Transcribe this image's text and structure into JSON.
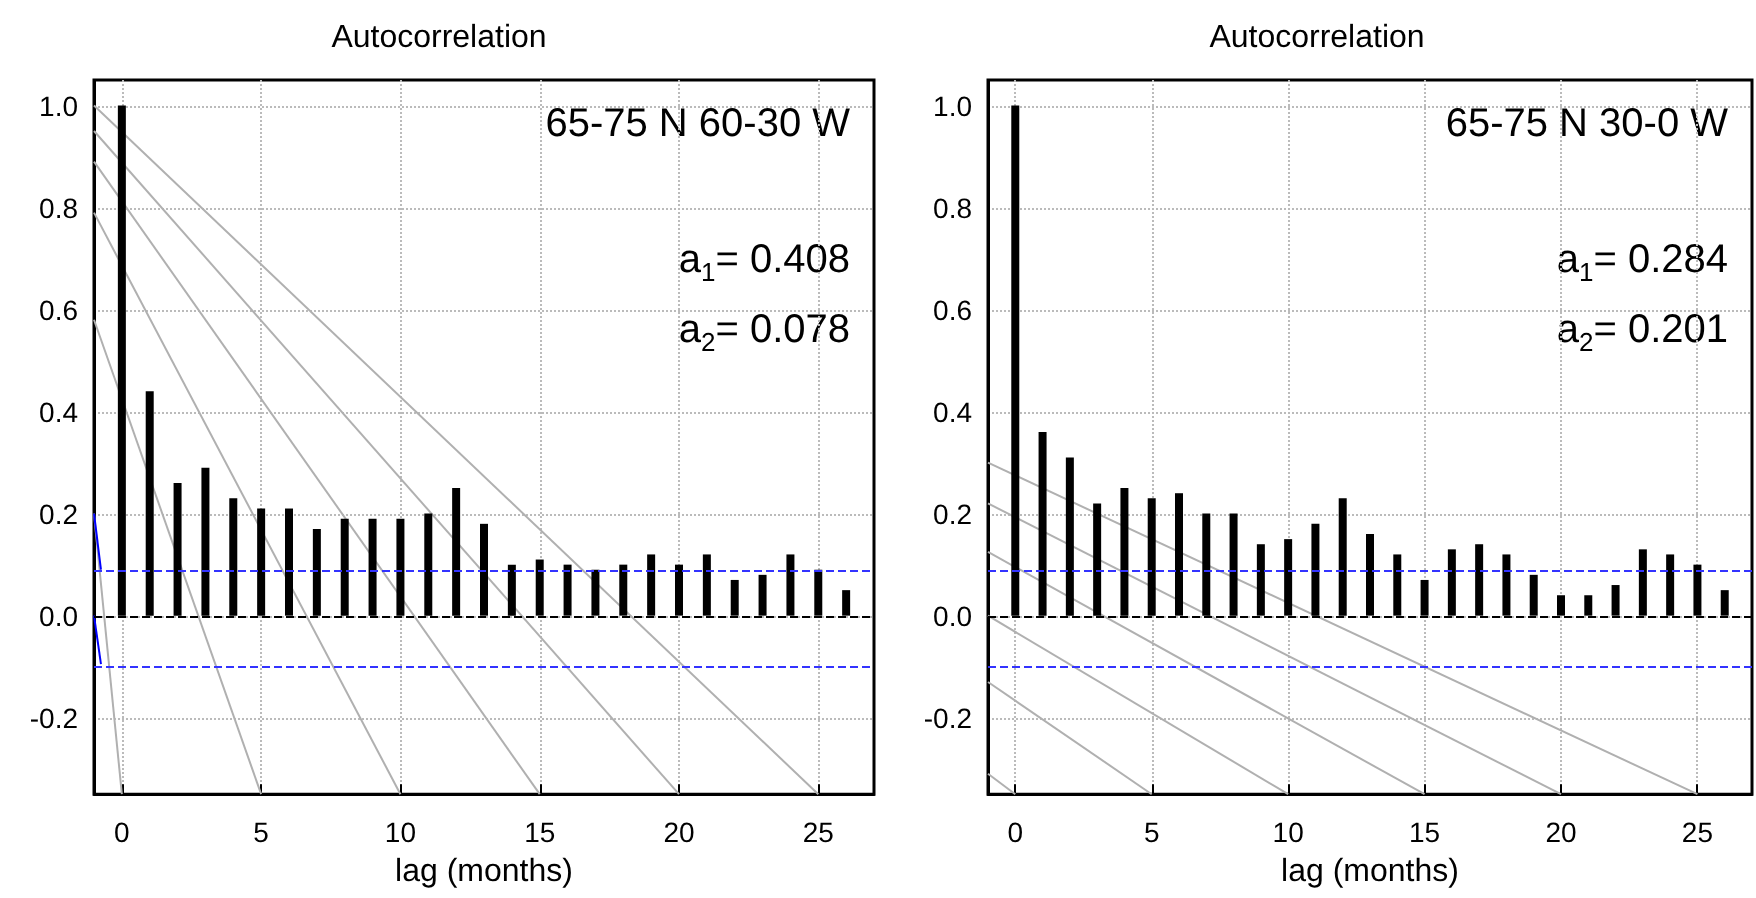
{
  "chart_data": [
    {
      "type": "bar",
      "title": "Autocorrelation",
      "xlabel": "lag (months)",
      "annotations": [
        "65-75 N 60-30 W",
        "a$_{1}$= 0.408",
        "a$_{2}$= 0.078"
      ],
      "x": [
        0,
        1,
        2,
        3,
        4,
        5,
        6,
        7,
        8,
        9,
        10,
        11,
        12,
        13,
        14,
        15,
        16,
        17,
        18,
        19,
        20,
        21,
        22,
        23,
        24,
        25,
        26
      ],
      "xlim": [
        -1,
        27
      ],
      "xticks": [
        0,
        5,
        10,
        15,
        20,
        25
      ],
      "ylim": [
        -0.35,
        1.05
      ],
      "yticks": [
        {
          "value": -0.2,
          "label": "-0.2"
        },
        {
          "value": 0,
          "label": "0.0"
        },
        0.2,
        0.4,
        0.6,
        0.8,
        {
          "value": 1,
          "label": "1.0"
        }
      ],
      "grid": true,
      "marker": "none",
      "series": [
        {
          "color": "#000000",
          "values": [
            1.0,
            0.44,
            0.26,
            0.29,
            0.23,
            0.21,
            0.21,
            0.17,
            0.19,
            0.19,
            0.19,
            0.2,
            0.25,
            0.18,
            0.1,
            0.11,
            0.1,
            0.09,
            0.1,
            0.12,
            0.1,
            0.12,
            0.07,
            0.08,
            0.12,
            0.09,
            0.05
          ]
        },
        {
          "type": "line",
          "color": "#b0b0b0",
          "x": [
            -1,
            25
          ],
          "values": [
            1.0,
            -0.35
          ]
        },
        {
          "type": "line",
          "color": "#b0b0b0",
          "x": [
            -1,
            20
          ],
          "values": [
            0.95,
            -0.35
          ]
        },
        {
          "type": "line",
          "color": "#b0b0b0",
          "x": [
            -1,
            15
          ],
          "values": [
            0.89,
            -0.35
          ]
        },
        {
          "type": "line",
          "color": "#b0b0b0",
          "x": [
            -1,
            10
          ],
          "values": [
            0.79,
            -0.35
          ]
        },
        {
          "type": "line",
          "color": "#b0b0b0",
          "x": [
            -1,
            5
          ],
          "values": [
            0.58,
            -0.35
          ]
        },
        {
          "type": "line",
          "color": "#b0b0b0",
          "x": [
            -1,
            0
          ],
          "values": [
            0.2,
            -0.35
          ]
        },
        {
          "type": "line",
          "color": "#0000ff",
          "x": [
            -1,
            -0.75
          ],
          "values": [
            0.2,
            0.09
          ]
        },
        {
          "type": "line",
          "color": "#0000ff",
          "x": [
            -1,
            -0.75
          ],
          "values": [
            0.0,
            -0.095
          ]
        }
      ],
      "ref_lines": [
        {
          "axis": "y",
          "value": 0.09,
          "color": "#3333ff",
          "line_style": "dashed"
        },
        {
          "axis": "y",
          "value": -0.095,
          "color": "#3333ff",
          "line_style": "dashed"
        },
        {
          "axis": "y",
          "value": 0,
          "color": "#000000",
          "line_style": "dashed"
        }
      ]
    },
    {
      "type": "bar",
      "title": "Autocorrelation",
      "xlabel": "lag (months)",
      "annotations": [
        "65-75 N 30-0 W",
        "a$_{1}$= 0.284",
        "a$_{2}$= 0.201"
      ],
      "x": [
        0,
        1,
        2,
        3,
        4,
        5,
        6,
        7,
        8,
        9,
        10,
        11,
        12,
        13,
        14,
        15,
        16,
        17,
        18,
        19,
        20,
        21,
        22,
        23,
        24,
        25,
        26
      ],
      "xlim": [
        -1,
        27
      ],
      "xticks": [
        0,
        5,
        10,
        15,
        20,
        25
      ],
      "ylim": [
        -0.35,
        1.05
      ],
      "yticks": [
        {
          "value": -0.2,
          "label": "-0.2"
        },
        {
          "value": 0,
          "label": "0.0"
        },
        0.2,
        0.4,
        0.6,
        0.8,
        {
          "value": 1,
          "label": "1.0"
        }
      ],
      "grid": true,
      "marker": "none",
      "series": [
        {
          "color": "#000000",
          "values": [
            1.0,
            0.36,
            0.31,
            0.22,
            0.25,
            0.23,
            0.24,
            0.2,
            0.2,
            0.14,
            0.15,
            0.18,
            0.23,
            0.16,
            0.12,
            0.07,
            0.13,
            0.14,
            0.12,
            0.08,
            0.04,
            0.04,
            0.06,
            0.13,
            0.12,
            0.1,
            0.05
          ]
        },
        {
          "type": "line",
          "color": "#b0b0b0",
          "x": [
            -1,
            25
          ],
          "values": [
            0.3,
            -0.35
          ]
        },
        {
          "type": "line",
          "color": "#b0b0b0",
          "x": [
            -1,
            20
          ],
          "values": [
            0.22,
            -0.35
          ]
        },
        {
          "type": "line",
          "color": "#b0b0b0",
          "x": [
            -1,
            15
          ],
          "values": [
            0.125,
            -0.35
          ]
        },
        {
          "type": "line",
          "color": "#b0b0b0",
          "x": [
            -1,
            10
          ],
          "values": [
            0.0,
            -0.35
          ]
        },
        {
          "type": "line",
          "color": "#b0b0b0",
          "x": [
            -1,
            5
          ],
          "values": [
            -0.13,
            -0.35
          ]
        },
        {
          "type": "line",
          "color": "#b0b0b0",
          "x": [
            -1,
            0
          ],
          "values": [
            -0.31,
            -0.35
          ]
        }
      ],
      "ref_lines": [
        {
          "axis": "y",
          "value": 0.09,
          "color": "#3333ff",
          "line_style": "dashed"
        },
        {
          "axis": "y",
          "value": -0.095,
          "color": "#3333ff",
          "line_style": "dashed"
        },
        {
          "axis": "y",
          "value": 0,
          "color": "#000000",
          "line_style": "dashed"
        }
      ]
    }
  ]
}
